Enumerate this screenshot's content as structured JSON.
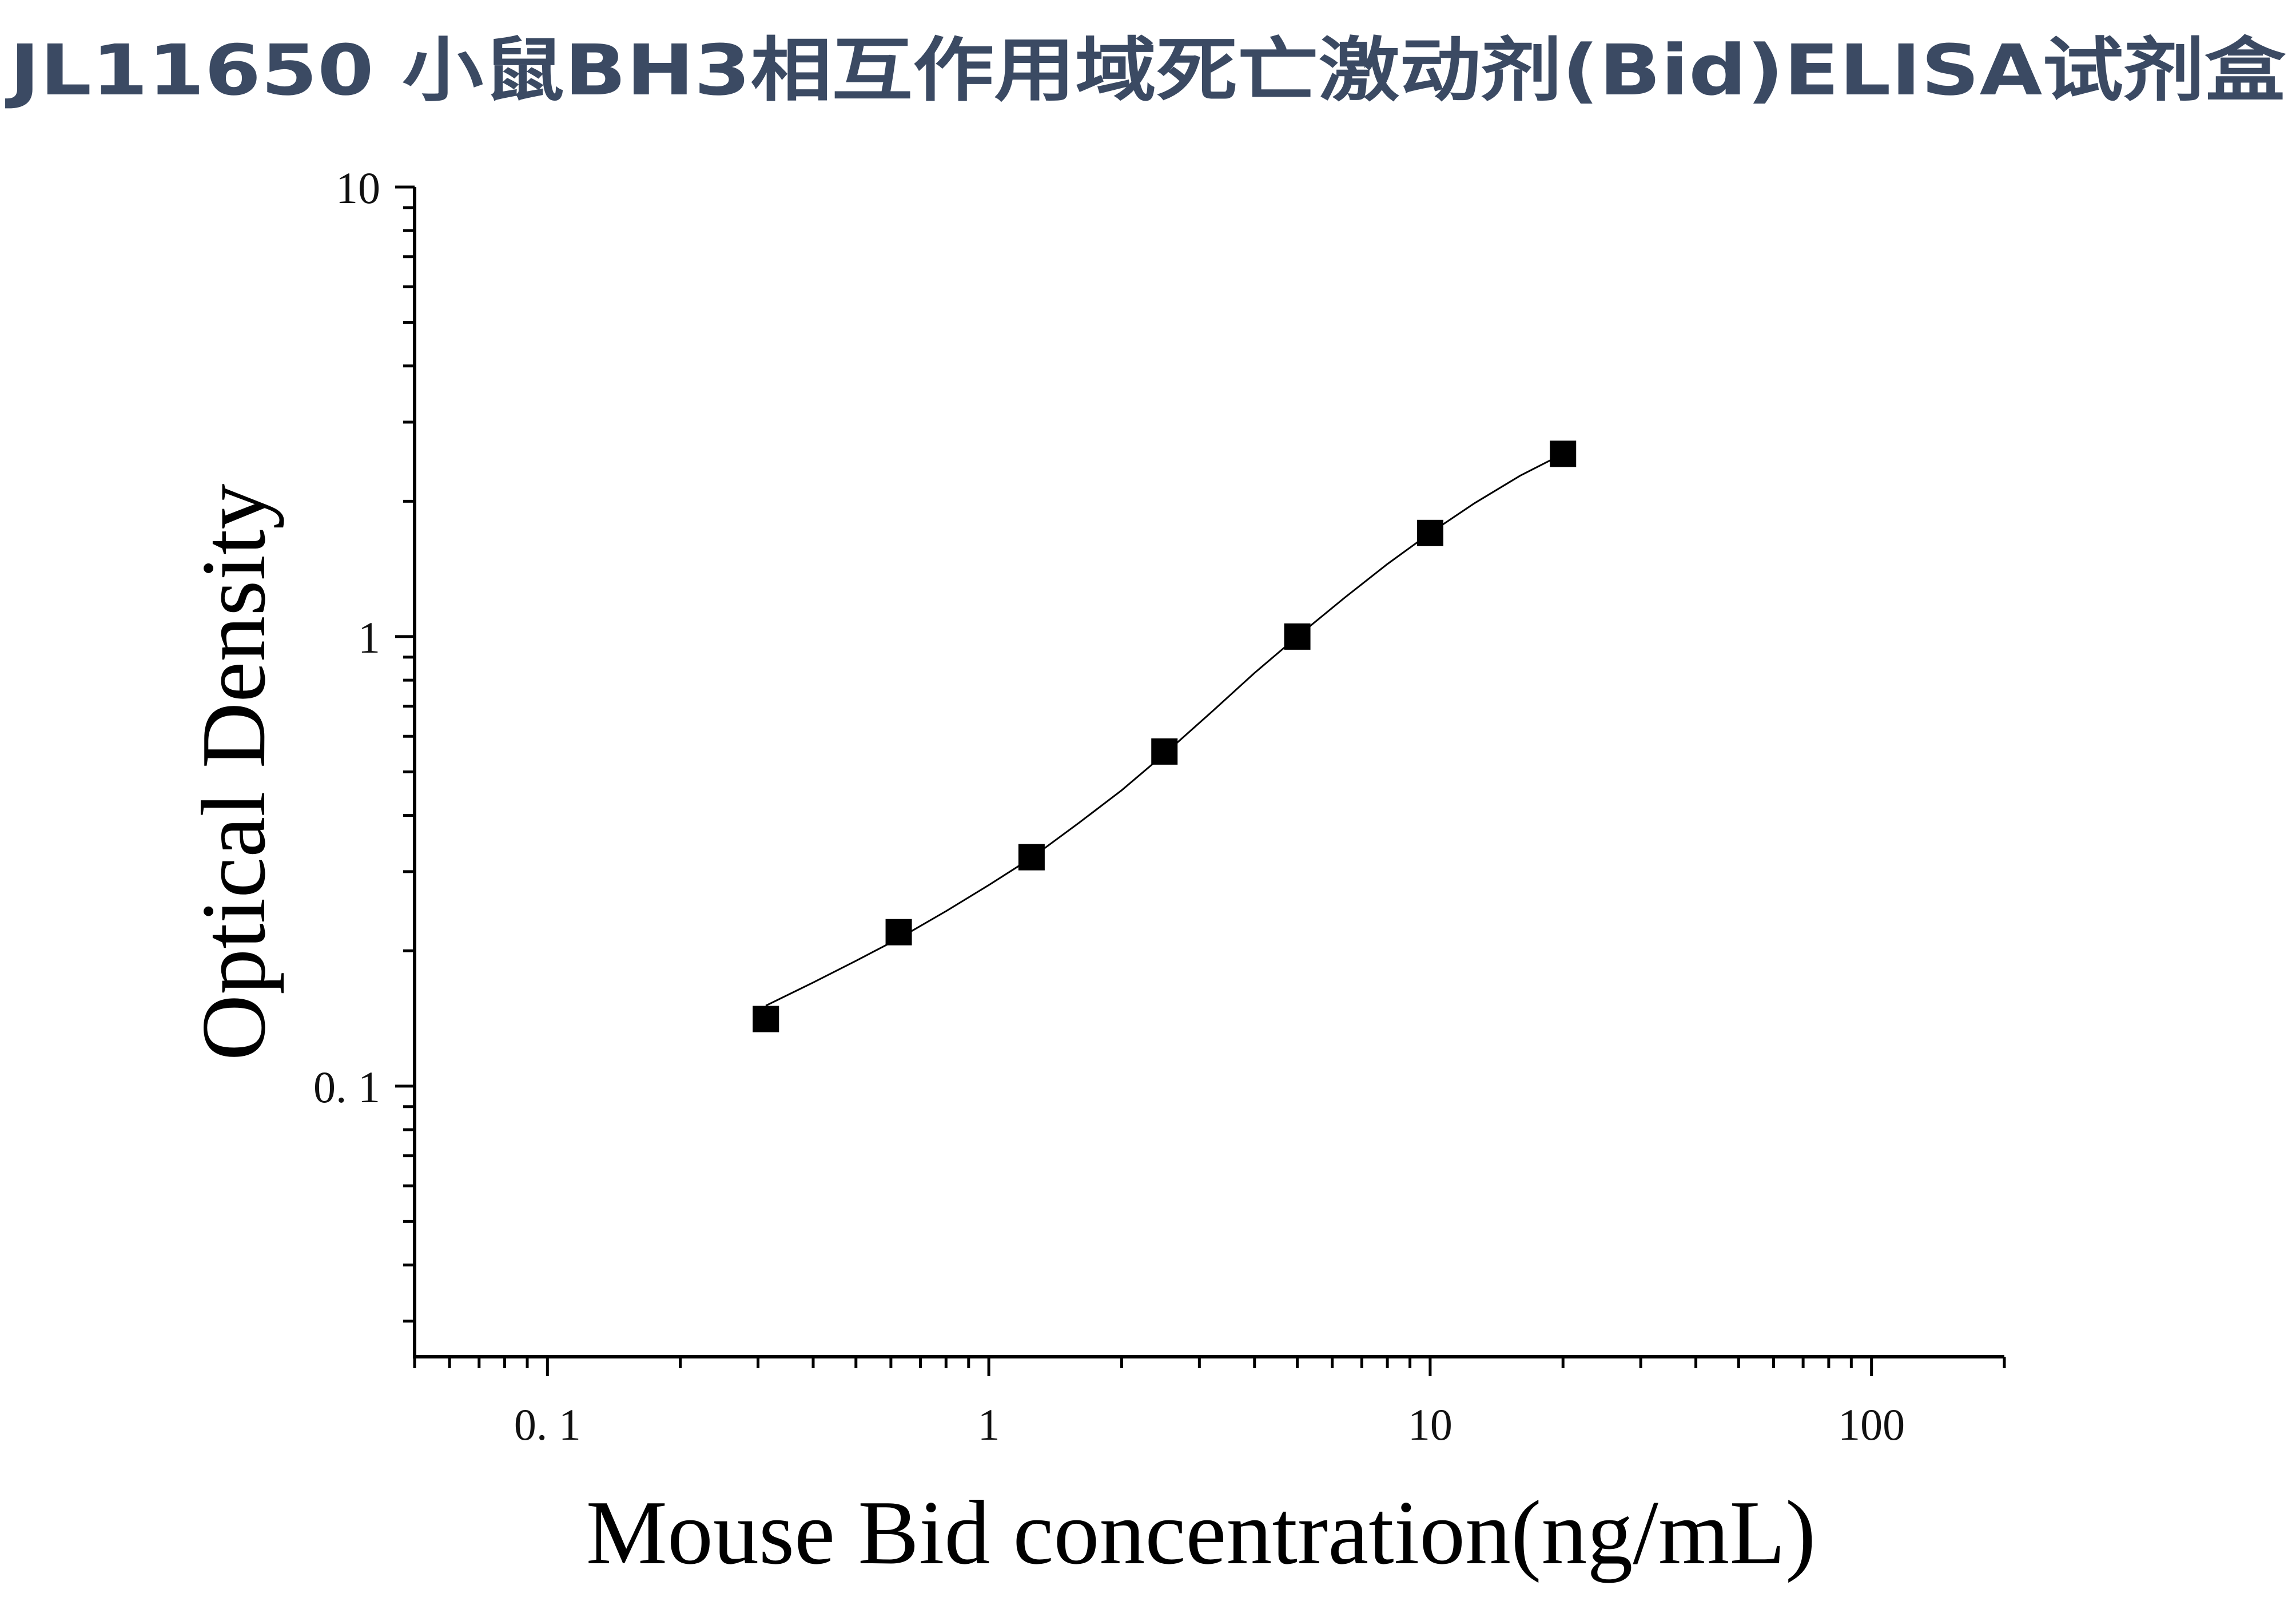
{
  "chart_data": {
    "type": "scatter",
    "title": "JL11650 小鼠BH3相互作用域死亡激动剂(Bid)ELISA试剂盒",
    "xlabel": "Mouse Bid concentration(ng/mL)",
    "ylabel": "Optical Density",
    "x_scale": "log",
    "y_scale": "log",
    "xlim": [
      0.05,
      200
    ],
    "ylim": [
      0.025,
      10
    ],
    "x_ticks": [
      0.1,
      1,
      10,
      100
    ],
    "x_tick_labels": [
      "0. 1",
      "1",
      "10",
      "100"
    ],
    "y_ticks": [
      0.1,
      1,
      10
    ],
    "y_tick_labels": [
      "0. 1",
      "1",
      "10"
    ],
    "grid": false,
    "marker": "square",
    "marker_color": "#000000",
    "curve_color": "#000000",
    "title_color": "#3b4a63",
    "points": {
      "x": [
        0.3125,
        0.625,
        1.25,
        2.5,
        5,
        10,
        20
      ],
      "y": [
        0.141,
        0.22,
        0.323,
        0.555,
        1.0,
        1.7,
        2.55
      ]
    },
    "fit_curve": {
      "x": [
        0.3125,
        0.4,
        0.5,
        0.625,
        0.8,
        1.0,
        1.25,
        1.6,
        2.0,
        2.5,
        3.2,
        4.0,
        5.0,
        6.4,
        8.0,
        10.0,
        12.6,
        16.0,
        20.0
      ],
      "y": [
        0.151,
        0.17,
        0.19,
        0.213,
        0.245,
        0.28,
        0.322,
        0.385,
        0.455,
        0.548,
        0.68,
        0.83,
        1.0,
        1.22,
        1.45,
        1.7,
        1.98,
        2.28,
        2.55
      ]
    }
  }
}
